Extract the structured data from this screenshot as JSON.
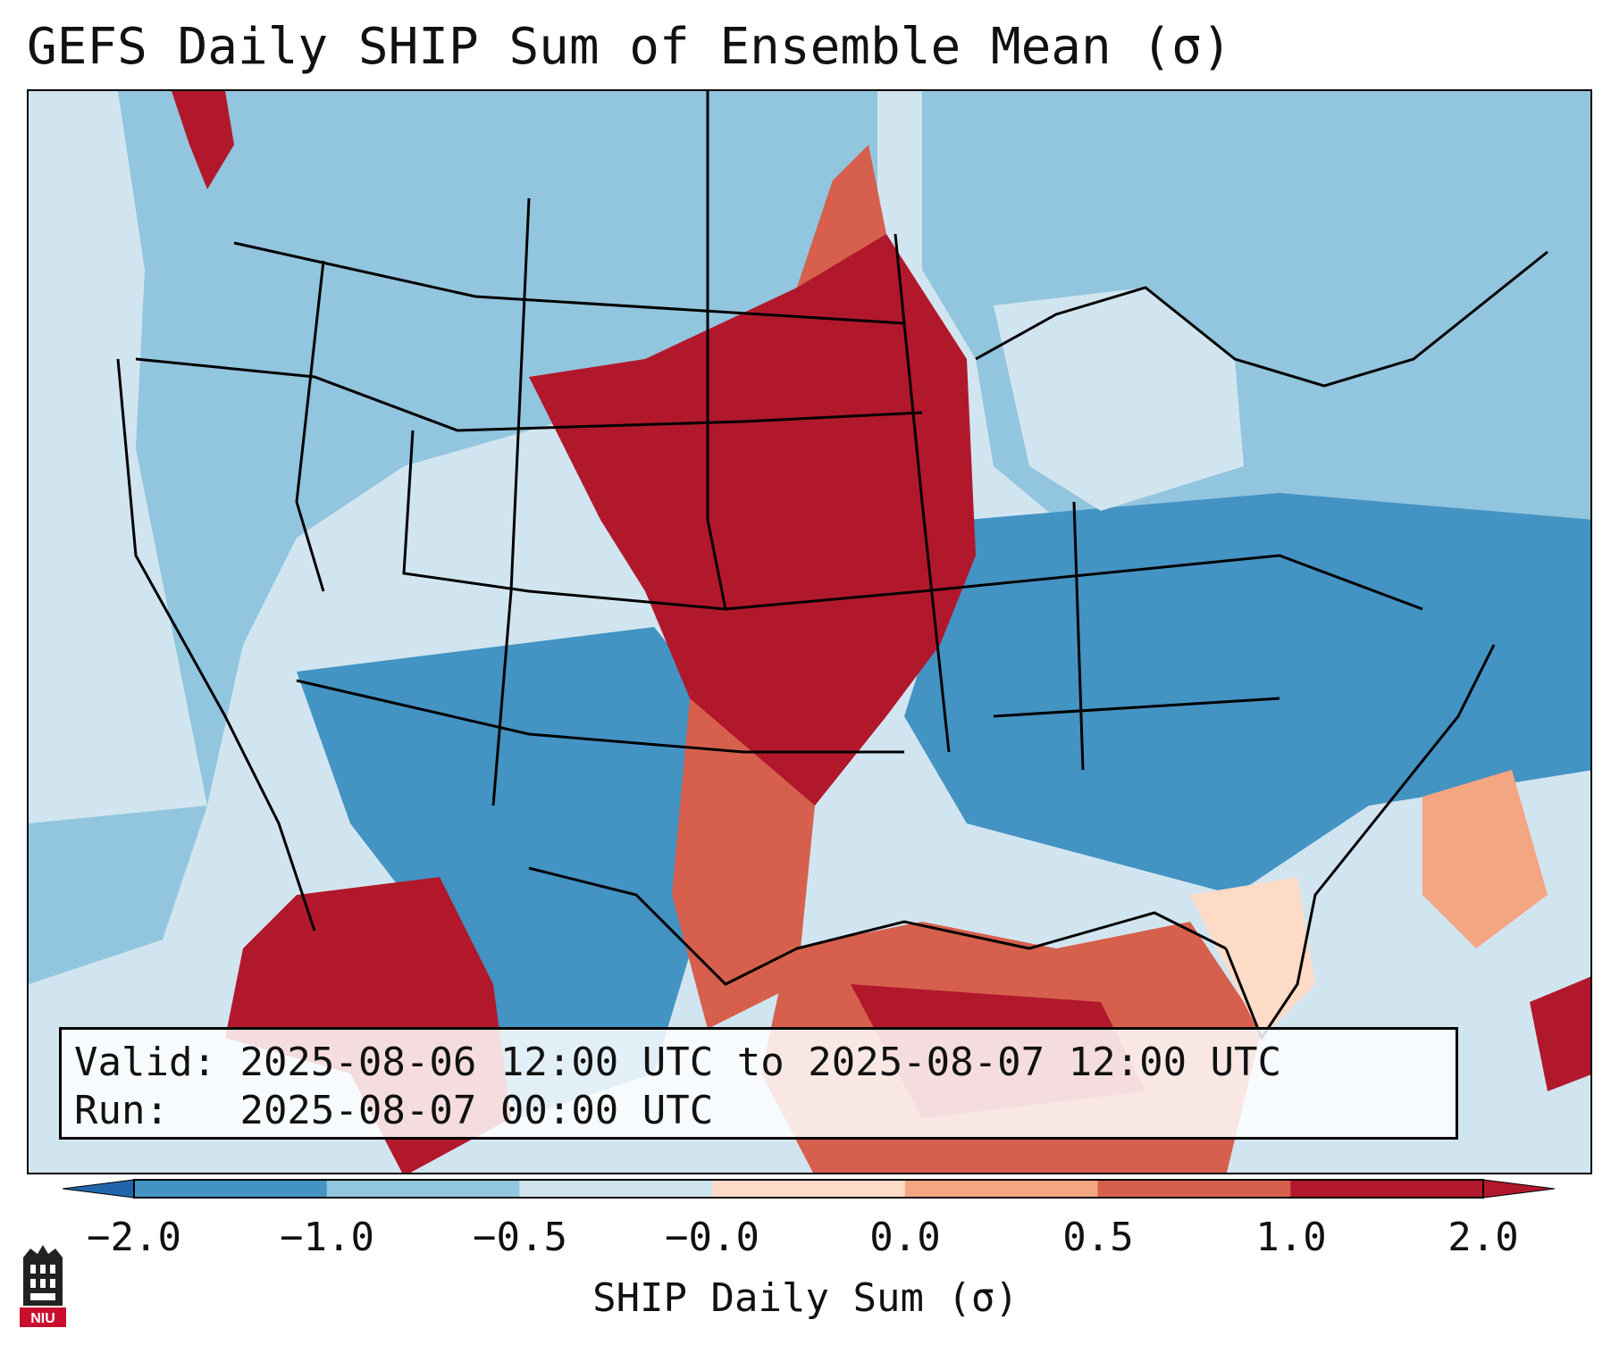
{
  "title": "GEFS Daily SHIP Sum of Ensemble Mean (σ)",
  "info": {
    "valid_label": "Valid:",
    "valid_value": "2025-08-06 12:00 UTC to 2025-08-07 12:00 UTC",
    "run_label": "Run:",
    "run_value": "2025-08-07 00:00 UTC"
  },
  "colorbar": {
    "label": "SHIP Daily Sum (σ)",
    "ticks": [
      "−2.0",
      "−1.0",
      "−0.5",
      "−0.0",
      "0.0",
      "0.5",
      "1.0",
      "2.0"
    ],
    "colors": [
      "#2166ac",
      "#4393c3",
      "#92c5de",
      "#d1e5f0",
      "#fddbc7",
      "#f4a582",
      "#d6604d",
      "#b2182b"
    ]
  },
  "logo": {
    "text": "NIU",
    "color": "#c8102e"
  }
}
